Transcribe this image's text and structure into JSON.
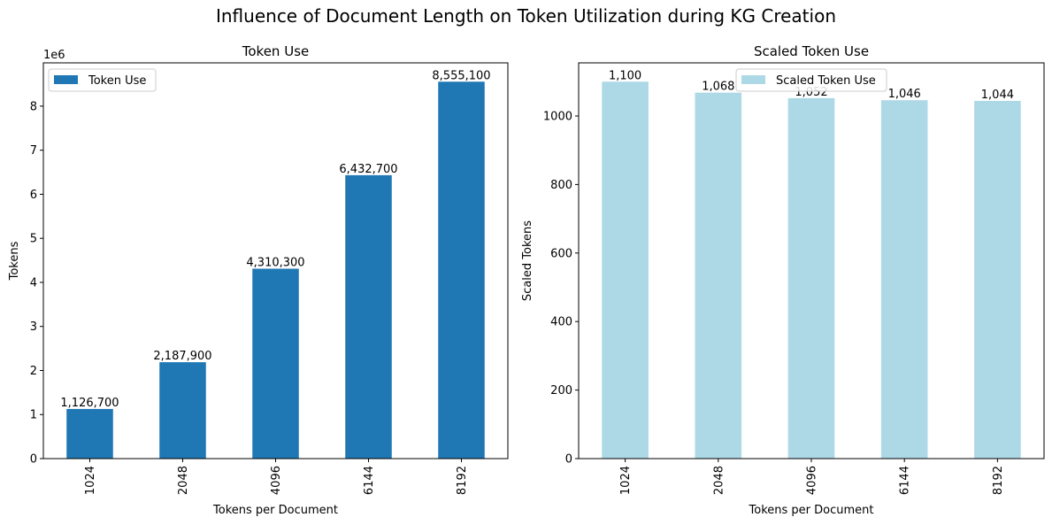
{
  "figure": {
    "suptitle": "Influence of Document Length on Token Utilization during KG Creation"
  },
  "chart_data": [
    {
      "type": "bar",
      "title": "Token Use",
      "xlabel": "Tokens per Document",
      "ylabel": "Tokens",
      "offset_text": "1e6",
      "categories": [
        "1024",
        "2048",
        "4096",
        "6144",
        "8192"
      ],
      "series": [
        {
          "name": "Token Use",
          "color": "#1f77b4",
          "values": [
            1126700,
            2187900,
            4310300,
            6432700,
            8555100
          ],
          "labels": [
            "1,126,700",
            "2,187,900",
            "4,310,300",
            "6,432,700",
            "8,555,100"
          ]
        }
      ],
      "ylim": [
        0,
        8982855
      ],
      "yticks": [
        0,
        1000000,
        2000000,
        3000000,
        4000000,
        5000000,
        6000000,
        7000000,
        8000000
      ],
      "ytick_labels": [
        "0",
        "1",
        "2",
        "3",
        "4",
        "5",
        "6",
        "7",
        "8"
      ],
      "legend_position": "upper left",
      "grid": false
    },
    {
      "type": "bar",
      "title": "Scaled Token Use",
      "xlabel": "Tokens per Document",
      "ylabel": "Scaled Tokens",
      "offset_text": "",
      "categories": [
        "1024",
        "2048",
        "4096",
        "6144",
        "8192"
      ],
      "series": [
        {
          "name": "Scaled Token Use",
          "color": "#add8e6",
          "values": [
            1100,
            1068,
            1052,
            1046,
            1044
          ],
          "labels": [
            "1,100",
            "1,068",
            "1,052",
            "1,046",
            "1,044"
          ]
        }
      ],
      "ylim": [
        0,
        1155
      ],
      "yticks": [
        0,
        200,
        400,
        600,
        800,
        1000
      ],
      "ytick_labels": [
        "0",
        "200",
        "400",
        "600",
        "800",
        "1000"
      ],
      "legend_position": "upper center",
      "grid": false
    }
  ]
}
